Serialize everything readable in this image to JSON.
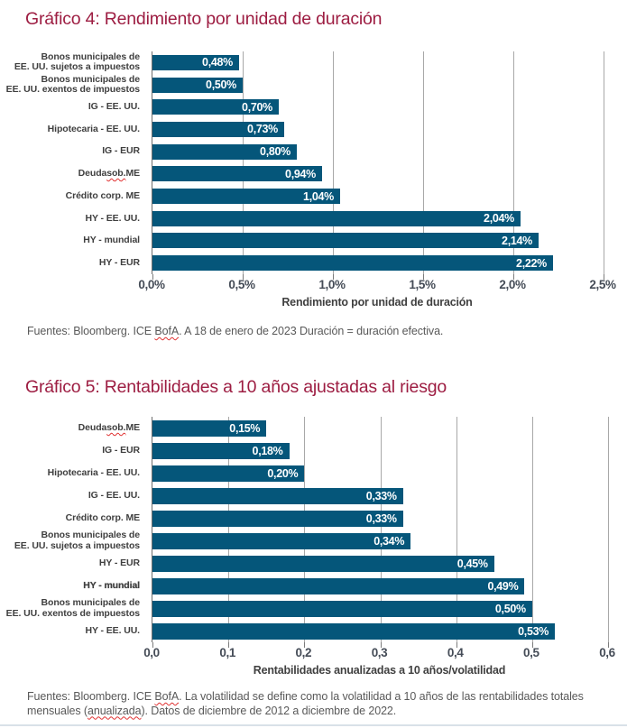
{
  "page": {
    "title_color": "#9D1D42",
    "bar_color": "#05567A",
    "sources": [
      {
        "text": "Fuentes: Bloomberg. ICE BofA. A 18 de enero de 2023 Duración = duración efectiva.",
        "misspelled": [
          "BofA"
        ]
      },
      {
        "text": "Fuentes: Bloomberg. ICE BofA. La volatilidad se define como la volatilidad a 10 años de las rentabilidades totales mensuales (anualizada). Datos de diciembre de 2012 a diciembre de 2022.",
        "misspelled": [
          "BofA",
          "anualizada"
        ]
      }
    ]
  },
  "chart_data": [
    {
      "type": "bar",
      "orientation": "horizontal",
      "title": "Gráfico 4: Rendimiento por unidad de duración",
      "xlabel": "Rendimiento por unidad de duración",
      "x_ticks": [
        "0,0%",
        "0,5%",
        "1,0%",
        "1,5%",
        "2,0%",
        "2,5%"
      ],
      "xlim": [
        0,
        2.5
      ],
      "grid": true,
      "legend": "none",
      "bars": [
        {
          "label": "Bonos municipales de EE. UU. sujetos a impuestos",
          "lines": [
            "Bonos municipales de",
            "EE. UU. sujetos a impuestos"
          ],
          "value": 0.48,
          "display": "0,48%"
        },
        {
          "label": "Bonos municipales de EE. UU. exentos de impuestos",
          "lines": [
            "Bonos municipales de",
            "EE. UU. exentos de impuestos"
          ],
          "value": 0.5,
          "display": "0,50%"
        },
        {
          "label": "IG - EE. UU.",
          "value": 0.7,
          "display": "0,70%"
        },
        {
          "label": "Hipotecaria - EE. UU.",
          "value": 0.73,
          "display": "0,73%"
        },
        {
          "label": "IG - EUR",
          "value": 0.8,
          "display": "0,80%"
        },
        {
          "label": "Deuda sob. ME",
          "value": 0.94,
          "display": "0,94%",
          "misspelled": "sob."
        },
        {
          "label": "Crédito corp. ME",
          "value": 1.04,
          "display": "1,04%"
        },
        {
          "label": "HY - EE. UU.",
          "value": 2.04,
          "display": "2,04%"
        },
        {
          "label": "HY - mundial",
          "value": 2.14,
          "display": "2,14%"
        },
        {
          "label": "HY - EUR",
          "value": 2.22,
          "display": "2,22%"
        }
      ]
    },
    {
      "type": "bar",
      "orientation": "horizontal",
      "title": "Gráfico 5: Rentabilidades a 10 años ajustadas al riesgo",
      "xlabel": "Rentabilidades anualizadas a 10 años/volatilidad",
      "x_ticks": [
        "0,0",
        "0,1",
        "0,2",
        "0,3",
        "0,4",
        "0,5",
        "0,6"
      ],
      "xlim": [
        0,
        0.6
      ],
      "grid": true,
      "legend": "none",
      "bars": [
        {
          "label": "Deuda sob. ME",
          "value": 0.15,
          "display": "0,15%",
          "misspelled": "sob."
        },
        {
          "label": "IG - EUR",
          "value": 0.18,
          "display": "0,18%"
        },
        {
          "label": "Hipotecaria - EE. UU.",
          "value": 0.2,
          "display": "0,20%"
        },
        {
          "label": "IG - EE. UU.",
          "value": 0.33,
          "display": "0,33%"
        },
        {
          "label": "Crédito corp. ME",
          "value": 0.33,
          "display": "0,33%"
        },
        {
          "label": "Bonos municipales de EE. UU. sujetos a impuestos",
          "lines": [
            "Bonos municipales de",
            "EE. UU. sujetos a impuestos"
          ],
          "value": 0.34,
          "display": "0,34%"
        },
        {
          "label": "HY - EUR",
          "value": 0.45,
          "display": "0,45%"
        },
        {
          "label": "HY - mundial",
          "value": 0.49,
          "display": "0,49%",
          "bold": true
        },
        {
          "label": "Bonos municipales de EE. UU. exentos de impuestos",
          "lines": [
            "Bonos municipales de",
            "EE. UU. exentos de impuestos"
          ],
          "value": 0.5,
          "display": "0,50%"
        },
        {
          "label": "HY - EE. UU.",
          "value": 0.53,
          "display": "0,53%"
        }
      ]
    }
  ]
}
